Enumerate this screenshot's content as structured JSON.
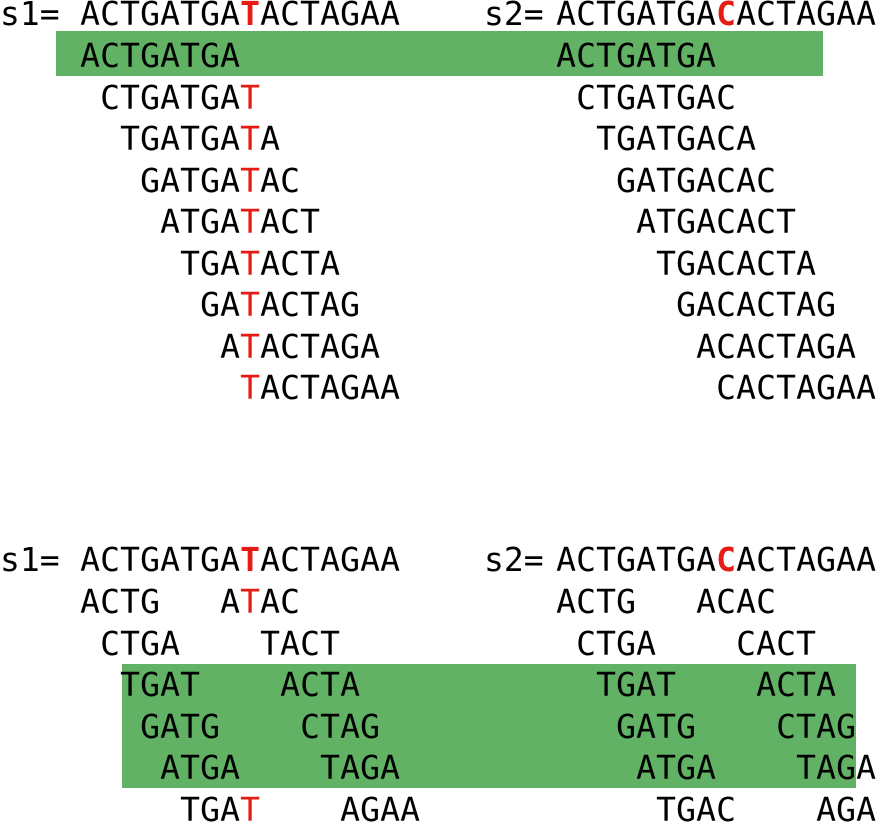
{
  "colors": {
    "highlight": "#62b265",
    "mismatch": "#e51b14",
    "text": "#000000"
  },
  "top_panel": {
    "s1": {
      "label": "s1=",
      "sequence": "ACTGATGATACTAGAA",
      "mismatch_index": 8
    },
    "s2": {
      "label": "s2=",
      "sequence": "ACTGATGACACTAGAA",
      "mismatch_index": 8
    },
    "s1_kmers": [
      "ACTGATGA",
      "CTGATGAT",
      "TGATGATA",
      "GATGATAC",
      "ATGATACT",
      "TGATACTA",
      "GATACTAG",
      "ATACTAGA",
      "TACTAGAA"
    ],
    "s2_kmers": [
      "ACTGATGA",
      "CTGATGAC",
      "TGATGACA",
      "GATGACAC",
      "ATGACACT",
      "TGACACTA",
      "GACACTAG",
      "ACACTAGA",
      "CACTAGAA"
    ],
    "highlighted_rows": [
      0
    ]
  },
  "bottom_panel": {
    "s1": {
      "label": "s1=",
      "sequence": "ACTGATGATACTAGAA",
      "mismatch_index": 8
    },
    "s2": {
      "label": "s2=",
      "sequence": "ACTGATGACACTAGAA",
      "mismatch_index": 8
    },
    "s1_rows": [
      "ACTG   ATAC",
      "CTGA    TACT",
      "TGAT    ACTA",
      "GATG    CTAG",
      "ATGA    TAGA",
      "TGAT    AGAA"
    ],
    "s2_rows": [
      "ACTG   ACAC",
      "CTGA    CACT",
      "TGAT    ACTA",
      "GATG    CTAG",
      "ATGA    TAGA",
      "TGAC    AGAA"
    ],
    "highlighted_rows": [
      2,
      3,
      4
    ]
  }
}
